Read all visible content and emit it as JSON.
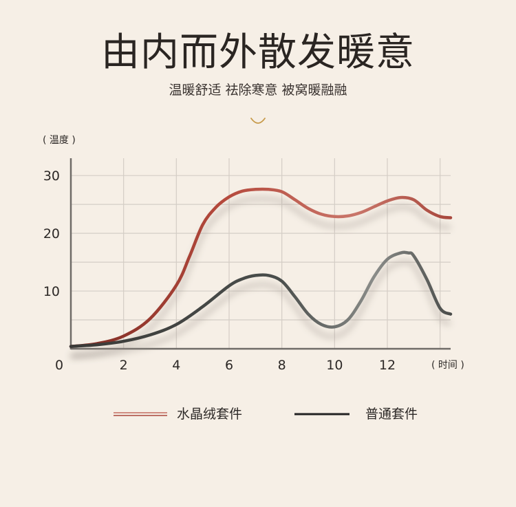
{
  "header": {
    "title": "由内而外散发暖意",
    "subtitle": "温暖舒适 祛除寒意 被窝暖融融",
    "ornament_icon": "curve-ornament-icon"
  },
  "chart_data": {
    "type": "line",
    "ylabel": "( 温度 )",
    "xlabel": "( 时间 )",
    "xlim": [
      0,
      14.4
    ],
    "ylim": [
      0,
      33
    ],
    "x_ticks": [
      0,
      2,
      4,
      6,
      8,
      10,
      12
    ],
    "y_ticks": [
      10,
      20,
      30
    ],
    "grid": true,
    "legend_position": "bottom",
    "series": [
      {
        "name": "水晶绒套件",
        "color": "#b85a4a",
        "x": [
          0,
          1,
          2,
          3,
          4,
          4.5,
          5,
          5.5,
          6,
          6.5,
          7,
          7.5,
          8,
          8.5,
          9,
          9.5,
          10,
          10.5,
          11,
          11.5,
          12,
          12.5,
          13,
          13.5,
          14,
          14.4
        ],
        "y": [
          0.4,
          0.9,
          2.2,
          5.2,
          11,
          16,
          21.5,
          24.5,
          26.3,
          27.3,
          27.6,
          27.6,
          27.2,
          25.8,
          24.3,
          23.3,
          22.9,
          23,
          23.6,
          24.6,
          25.6,
          26.2,
          25.8,
          24,
          22.9,
          22.7
        ]
      },
      {
        "name": "普通套件",
        "color": "#2e2c2a",
        "x": [
          0,
          1,
          2,
          3,
          4,
          5,
          6,
          6.5,
          7,
          7.5,
          8,
          8.5,
          9,
          9.5,
          10,
          10.5,
          11,
          11.5,
          12,
          12.5,
          12.8,
          13,
          13.5,
          14,
          14.4
        ],
        "y": [
          0.4,
          0.7,
          1.3,
          2.4,
          4.2,
          7.3,
          10.9,
          12.1,
          12.7,
          12.7,
          11.7,
          9,
          6,
          4.2,
          3.8,
          5,
          8.3,
          12.5,
          15.5,
          16.6,
          16.6,
          16.1,
          12,
          7,
          6
        ]
      }
    ]
  }
}
